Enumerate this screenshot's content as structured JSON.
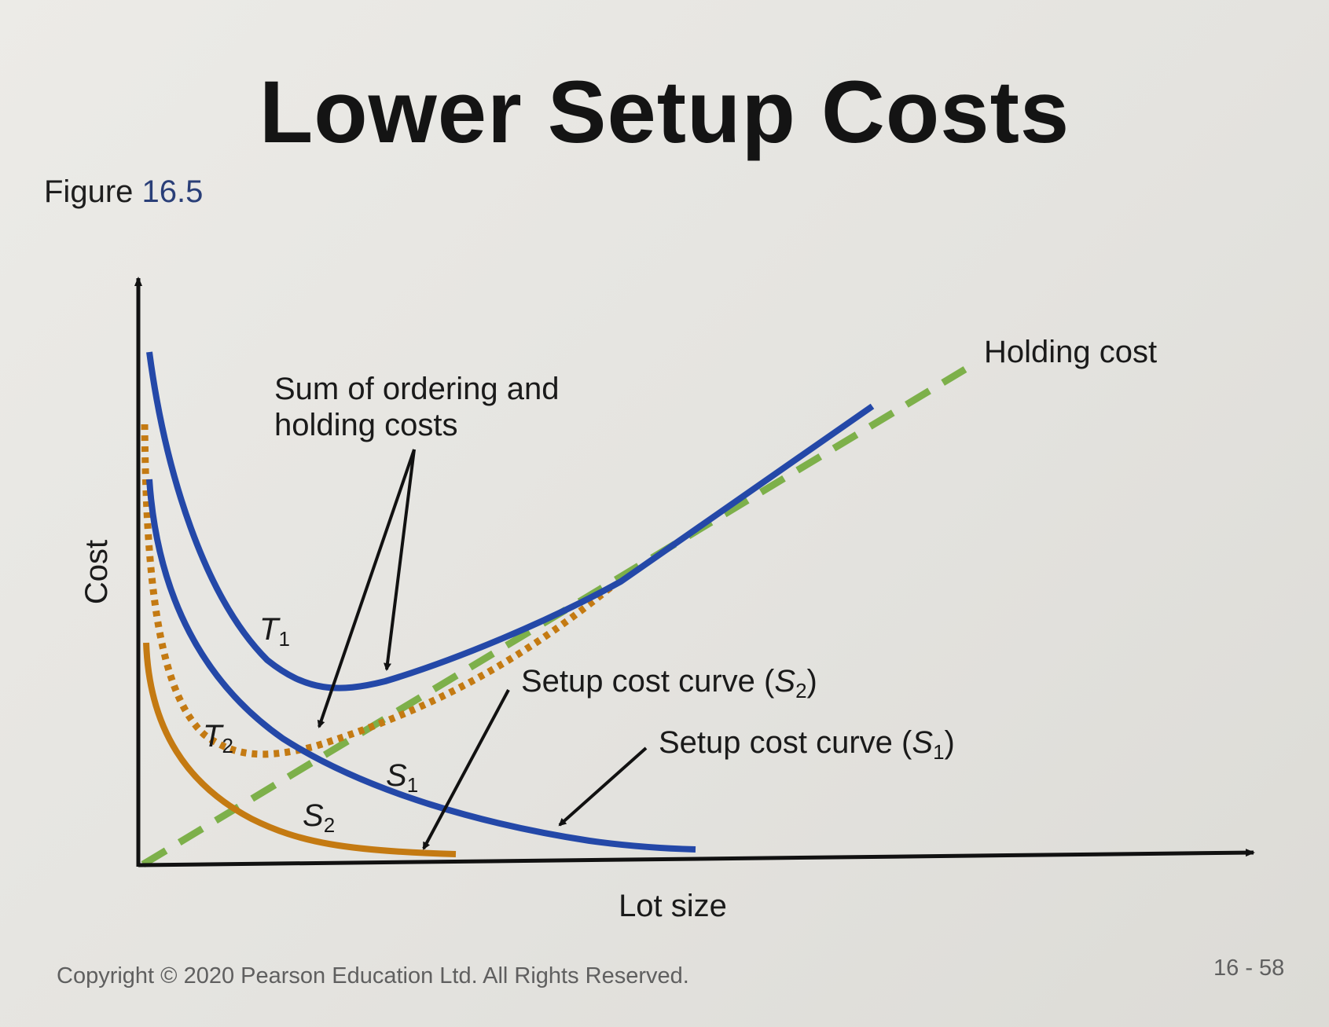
{
  "slide": {
    "title": "Lower Setup Costs",
    "figure_prefix": "Figure",
    "figure_number": "16.5",
    "copyright": "Copyright © 2020 Pearson Education Ltd. All Rights Reserved.",
    "page": "16 - 58"
  },
  "colors": {
    "blue_curve": "#2448a8",
    "orange_curve": "#c47a12",
    "green_dashed": "#7db04a",
    "axis": "#111111"
  },
  "chart_data": {
    "type": "line",
    "title": "",
    "xlabel": "Lot size",
    "ylabel": "Cost",
    "grid": false,
    "series": [
      {
        "name": "Holding cost",
        "style": "green-dashed"
      },
      {
        "name": "T1",
        "style": "blue-solid"
      },
      {
        "name": "S1",
        "style": "blue-solid"
      },
      {
        "name": "T2",
        "style": "orange-dotted"
      },
      {
        "name": "S2",
        "style": "orange-solid"
      }
    ],
    "annotations": [
      {
        "text": "Sum of ordering and holding costs",
        "lines": [
          "Sum of ordering and",
          "holding costs"
        ]
      },
      {
        "text": "Setup cost curve (S2)",
        "base": "Setup cost curve (",
        "sym": "S",
        "sub": "2",
        "end": ")"
      },
      {
        "text": "Setup cost curve (S1)",
        "base": "Setup cost curve (",
        "sym": "S",
        "sub": "1",
        "end": ")"
      },
      {
        "text": "Holding cost"
      }
    ],
    "curve_labels": [
      {
        "sym": "T",
        "sub": "1"
      },
      {
        "sym": "T",
        "sub": "2"
      },
      {
        "sym": "S",
        "sub": "1"
      },
      {
        "sym": "S",
        "sub": "2"
      }
    ]
  }
}
